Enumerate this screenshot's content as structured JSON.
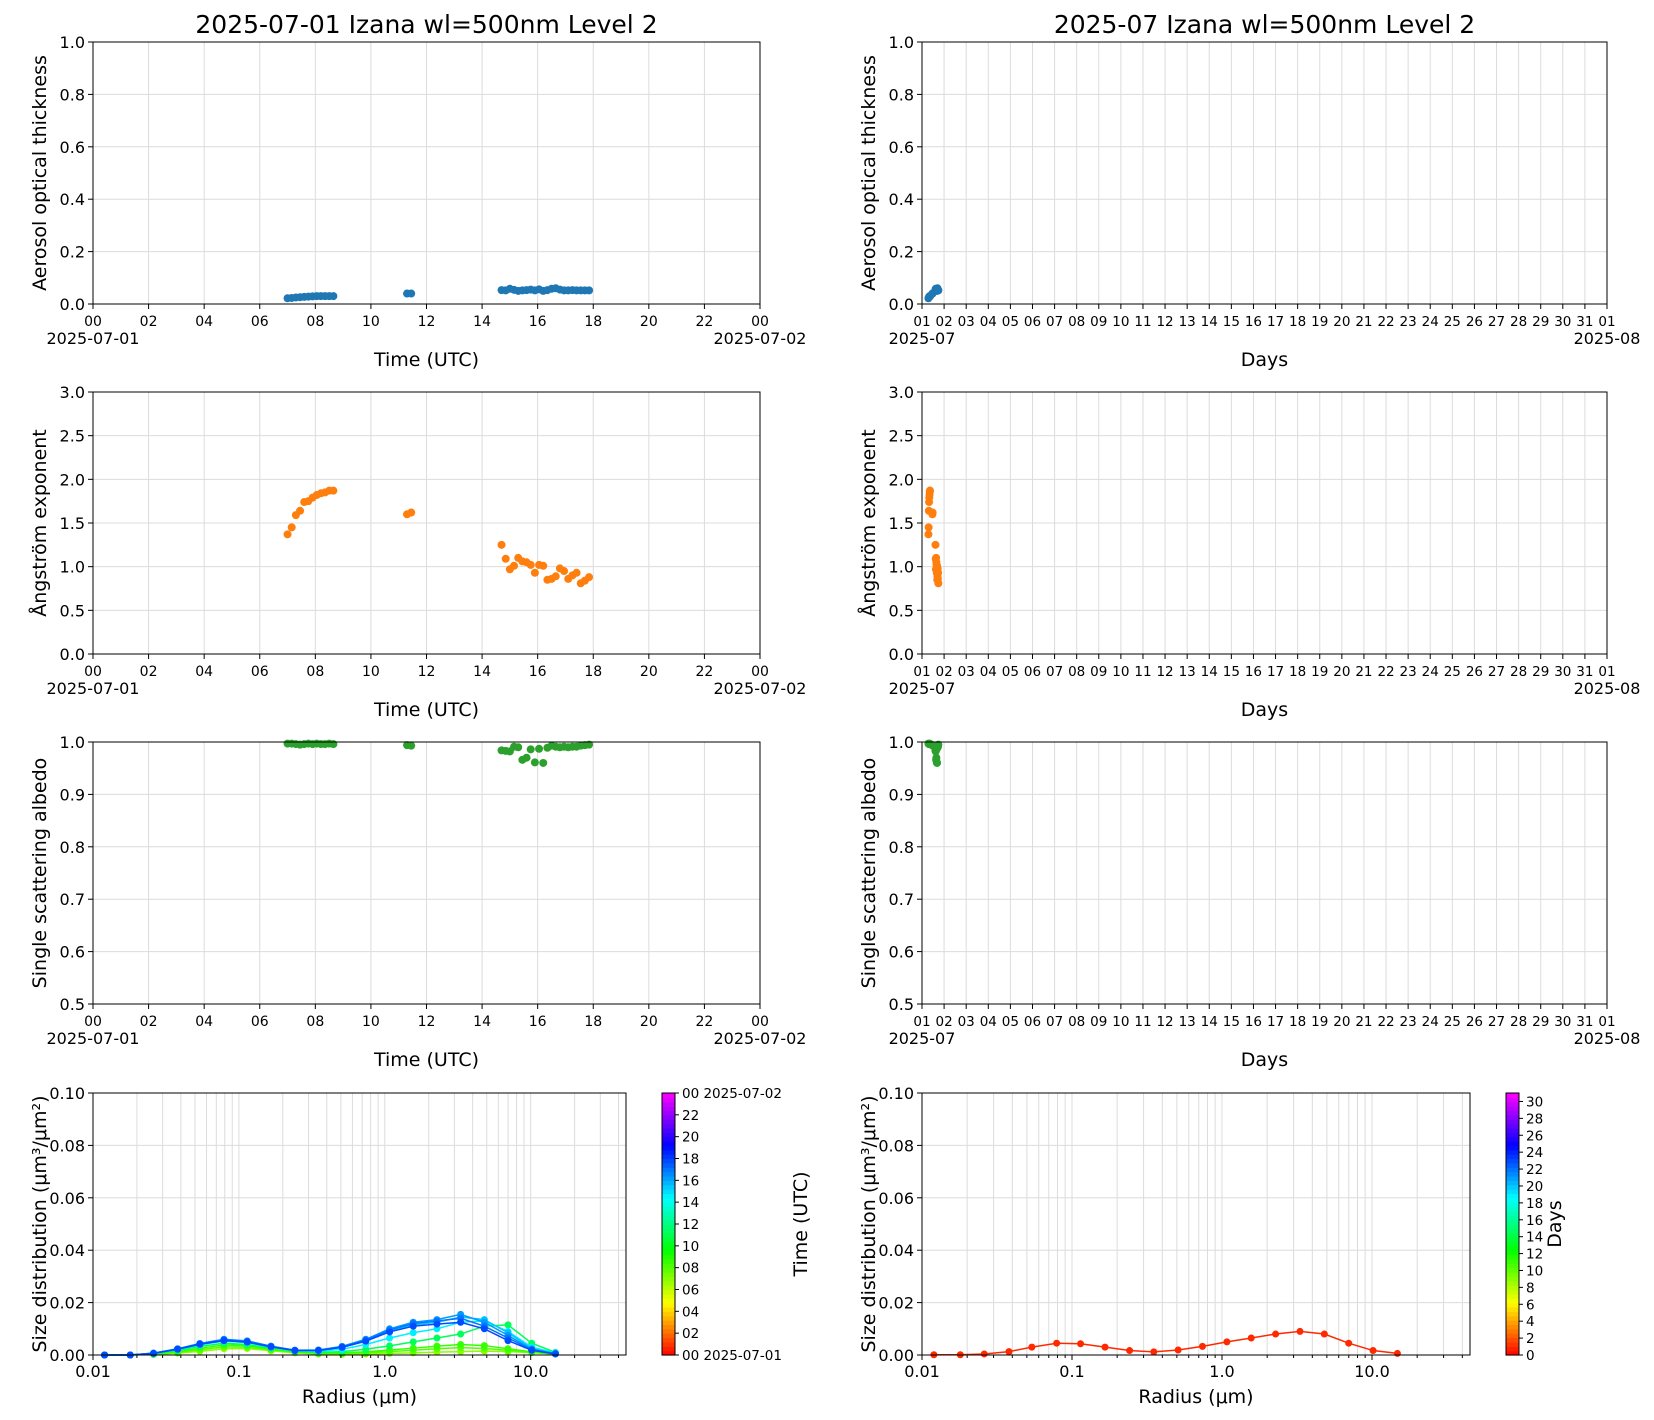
{
  "colors": {
    "aod": "#1f77b4",
    "angstrom": "#ff7f0e",
    "ssa": "#2ca02c",
    "grid": "#dcdcdc"
  },
  "chart_data": [
    {
      "id": "aod_day",
      "type": "scatter",
      "panel": "day",
      "title": "2025-07-01  Izana  wl=500nm  Level 2",
      "xlabel": "Time (UTC)",
      "ylabel": "Aerosol optical thickness",
      "xlim": [
        0,
        24
      ],
      "ylim": [
        0,
        1
      ],
      "xticks": [
        "00",
        "02",
        "04",
        "06",
        "08",
        "10",
        "12",
        "14",
        "16",
        "18",
        "20",
        "22",
        "00"
      ],
      "yticks": [
        "0.0",
        "0.2",
        "0.4",
        "0.6",
        "0.8",
        "1.0"
      ],
      "x_left_date": "2025-07-01",
      "x_right_date": "2025-07-02",
      "grid": true,
      "color": "#1f77b4",
      "x": [
        7.0,
        7.15,
        7.3,
        7.45,
        7.6,
        7.75,
        7.9,
        8.05,
        8.2,
        8.35,
        8.5,
        8.65,
        11.3,
        11.45,
        14.7,
        14.85,
        15.0,
        15.15,
        15.3,
        15.45,
        15.6,
        15.75,
        15.9,
        16.05,
        16.2,
        16.35,
        16.5,
        16.65,
        16.8,
        16.95,
        17.1,
        17.25,
        17.4,
        17.55,
        17.7,
        17.85
      ],
      "y": [
        0.022,
        0.023,
        0.025,
        0.026,
        0.027,
        0.028,
        0.029,
        0.03,
        0.03,
        0.03,
        0.03,
        0.03,
        0.04,
        0.04,
        0.053,
        0.052,
        0.058,
        0.054,
        0.05,
        0.052,
        0.053,
        0.055,
        0.052,
        0.056,
        0.05,
        0.053,
        0.058,
        0.06,
        0.055,
        0.052,
        0.052,
        0.053,
        0.052,
        0.052,
        0.052,
        0.052
      ]
    },
    {
      "id": "aod_month",
      "type": "scatter",
      "panel": "month",
      "title": "2025-07  Izana  wl=500nm  Level 2",
      "xlabel": "Days",
      "ylabel": "Aerosol optical thickness",
      "xlim": [
        1,
        32
      ],
      "ylim": [
        0,
        1
      ],
      "xticks": [
        "01",
        "02",
        "03",
        "04",
        "05",
        "06",
        "07",
        "08",
        "09",
        "10",
        "11",
        "12",
        "13",
        "14",
        "15",
        "16",
        "17",
        "18",
        "19",
        "20",
        "21",
        "22",
        "23",
        "24",
        "25",
        "26",
        "27",
        "28",
        "29",
        "30",
        "31",
        "01"
      ],
      "yticks": [
        "0.0",
        "0.2",
        "0.4",
        "0.6",
        "0.8",
        "1.0"
      ],
      "x_left_date": "2025-07",
      "x_right_date": "2025-08",
      "grid": true,
      "color": "#1f77b4",
      "x": [
        1.29,
        1.31,
        1.32,
        1.34,
        1.35,
        1.36,
        1.37,
        1.47,
        1.48,
        1.61,
        1.62,
        1.63,
        1.64,
        1.65,
        1.66,
        1.67,
        1.68,
        1.69,
        1.7,
        1.71,
        1.72,
        1.73,
        1.74
      ],
      "y": [
        0.022,
        0.025,
        0.027,
        0.029,
        0.03,
        0.03,
        0.03,
        0.04,
        0.04,
        0.053,
        0.058,
        0.054,
        0.05,
        0.053,
        0.055,
        0.056,
        0.05,
        0.058,
        0.06,
        0.055,
        0.052,
        0.053,
        0.052
      ]
    },
    {
      "id": "ae_day",
      "type": "scatter",
      "panel": "day",
      "xlabel": "Time (UTC)",
      "ylabel": "Ångström exponent",
      "xlim": [
        0,
        24
      ],
      "ylim": [
        0,
        3
      ],
      "xticks": [
        "00",
        "02",
        "04",
        "06",
        "08",
        "10",
        "12",
        "14",
        "16",
        "18",
        "20",
        "22",
        "00"
      ],
      "yticks": [
        "0.0",
        "0.5",
        "1.0",
        "1.5",
        "2.0",
        "2.5",
        "3.0"
      ],
      "x_left_date": "2025-07-01",
      "x_right_date": "2025-07-02",
      "grid": true,
      "color": "#ff7f0e",
      "x": [
        7.0,
        7.15,
        7.3,
        7.45,
        7.6,
        7.75,
        7.9,
        8.05,
        8.2,
        8.35,
        8.5,
        8.65,
        11.3,
        11.45,
        14.7,
        14.85,
        15.0,
        15.15,
        15.3,
        15.45,
        15.6,
        15.75,
        15.9,
        16.05,
        16.2,
        16.35,
        16.5,
        16.65,
        16.8,
        16.95,
        17.1,
        17.25,
        17.4,
        17.55,
        17.7,
        17.85
      ],
      "y": [
        1.37,
        1.45,
        1.59,
        1.64,
        1.74,
        1.75,
        1.79,
        1.82,
        1.84,
        1.85,
        1.87,
        1.87,
        1.6,
        1.62,
        1.25,
        1.09,
        0.97,
        1.01,
        1.1,
        1.06,
        1.05,
        1.02,
        0.93,
        1.02,
        1.01,
        0.85,
        0.86,
        0.89,
        0.98,
        0.95,
        0.86,
        0.9,
        0.93,
        0.81,
        0.84,
        0.88
      ]
    },
    {
      "id": "ae_month",
      "type": "scatter",
      "panel": "month",
      "xlabel": "Days",
      "ylabel": "Ångström exponent",
      "xlim": [
        1,
        32
      ],
      "ylim": [
        0,
        3
      ],
      "xticks": [
        "01",
        "02",
        "03",
        "04",
        "05",
        "06",
        "07",
        "08",
        "09",
        "10",
        "11",
        "12",
        "13",
        "14",
        "15",
        "16",
        "17",
        "18",
        "19",
        "20",
        "21",
        "22",
        "23",
        "24",
        "25",
        "26",
        "27",
        "28",
        "29",
        "30",
        "31",
        "01"
      ],
      "yticks": [
        "0.0",
        "0.5",
        "1.0",
        "1.5",
        "2.0",
        "2.5",
        "3.0"
      ],
      "x_left_date": "2025-07",
      "x_right_date": "2025-08",
      "grid": true,
      "color": "#ff7f0e",
      "x": [
        1.29,
        1.3,
        1.31,
        1.32,
        1.33,
        1.34,
        1.35,
        1.36,
        1.36,
        1.47,
        1.48,
        1.61,
        1.62,
        1.63,
        1.64,
        1.65,
        1.66,
        1.67,
        1.68,
        1.69,
        1.7,
        1.71,
        1.72,
        1.73,
        1.74
      ],
      "y": [
        1.37,
        1.45,
        1.64,
        1.74,
        1.79,
        1.82,
        1.85,
        1.87,
        1.87,
        1.6,
        1.62,
        1.25,
        1.09,
        0.97,
        1.1,
        1.05,
        1.02,
        0.93,
        1.01,
        0.85,
        0.89,
        0.98,
        0.86,
        0.93,
        0.81
      ]
    },
    {
      "id": "ssa_day",
      "type": "scatter",
      "panel": "day",
      "xlabel": "Time (UTC)",
      "ylabel": "Single scattering albedo",
      "xlim": [
        0,
        24
      ],
      "ylim": [
        0.5,
        1.0
      ],
      "xticks": [
        "00",
        "02",
        "04",
        "06",
        "08",
        "10",
        "12",
        "14",
        "16",
        "18",
        "20",
        "22",
        "00"
      ],
      "yticks": [
        "0.5",
        "0.6",
        "0.7",
        "0.8",
        "0.9",
        "1.0"
      ],
      "x_left_date": "2025-07-01",
      "x_right_date": "2025-07-02",
      "grid": true,
      "color": "#2ca02c",
      "x": [
        7.0,
        7.15,
        7.3,
        7.45,
        7.6,
        7.75,
        7.9,
        8.05,
        8.2,
        8.35,
        8.5,
        8.65,
        11.3,
        11.45,
        14.7,
        14.85,
        15.0,
        15.15,
        15.3,
        15.45,
        15.6,
        15.75,
        15.9,
        16.05,
        16.2,
        16.35,
        16.5,
        16.65,
        16.8,
        16.95,
        17.1,
        17.25,
        17.4,
        17.55,
        17.7,
        17.85
      ],
      "y": [
        0.997,
        0.997,
        0.996,
        0.995,
        0.996,
        0.997,
        0.996,
        0.997,
        0.996,
        0.996,
        0.997,
        0.996,
        0.994,
        0.993,
        0.984,
        0.983,
        0.982,
        0.991,
        0.99,
        0.966,
        0.97,
        0.986,
        0.961,
        0.987,
        0.96,
        0.989,
        0.993,
        0.991,
        0.99,
        0.991,
        0.99,
        0.991,
        0.991,
        0.993,
        0.994,
        0.995
      ]
    },
    {
      "id": "ssa_month",
      "type": "scatter",
      "panel": "month",
      "xlabel": "Days",
      "ylabel": "Single scattering albedo",
      "xlim": [
        1,
        32
      ],
      "ylim": [
        0.5,
        1.0
      ],
      "xticks": [
        "01",
        "02",
        "03",
        "04",
        "05",
        "06",
        "07",
        "08",
        "09",
        "10",
        "11",
        "12",
        "13",
        "14",
        "15",
        "16",
        "17",
        "18",
        "19",
        "20",
        "21",
        "22",
        "23",
        "24",
        "25",
        "26",
        "27",
        "28",
        "29",
        "30",
        "31",
        "01"
      ],
      "yticks": [
        "0.5",
        "0.6",
        "0.7",
        "0.8",
        "0.9",
        "1.0"
      ],
      "x_left_date": "2025-07",
      "x_right_date": "2025-08",
      "grid": true,
      "color": "#2ca02c",
      "x": [
        1.29,
        1.31,
        1.33,
        1.35,
        1.36,
        1.47,
        1.48,
        1.61,
        1.62,
        1.63,
        1.64,
        1.65,
        1.66,
        1.67,
        1.68,
        1.69,
        1.7,
        1.71,
        1.72,
        1.73,
        1.74
      ],
      "y": [
        0.997,
        0.996,
        0.996,
        0.997,
        0.996,
        0.994,
        0.993,
        0.984,
        0.982,
        0.991,
        0.966,
        0.97,
        0.986,
        0.961,
        0.96,
        0.989,
        0.993,
        0.99,
        0.991,
        0.993,
        0.995
      ]
    },
    {
      "id": "psd_day",
      "type": "line",
      "panel": "day",
      "xlabel": "Radius (μm)",
      "ylabel": "Size distribution (μm³/μm²)",
      "xscale": "log",
      "xlim": [
        0.01,
        45
      ],
      "ylim": [
        0,
        0.1
      ],
      "xticks": [
        "0.01",
        "0.1",
        "1.0",
        "10.0"
      ],
      "yticks": [
        "0.00",
        "0.02",
        "0.04",
        "0.06",
        "0.08",
        "0.10"
      ],
      "grid": true,
      "radius": [
        0.012,
        0.018,
        0.026,
        0.038,
        0.054,
        0.079,
        0.114,
        0.166,
        0.242,
        0.351,
        0.51,
        0.741,
        1.078,
        1.566,
        2.277,
        3.31,
        4.81,
        6.99,
        10.16,
        14.77
      ],
      "series": [
        {
          "time": 7.0,
          "values": [
            0,
            0,
            0.0002,
            0.0007,
            0.0014,
            0.0024,
            0.0025,
            0.0016,
            0.0008,
            0.0004,
            0.0003,
            0.0004,
            0.0006,
            0.0008,
            0.0011,
            0.0013,
            0.0015,
            0.0013,
            0.0009,
            0.0004
          ]
        },
        {
          "time": 8.0,
          "values": [
            0,
            0,
            0.0003,
            0.001,
            0.002,
            0.0031,
            0.003,
            0.002,
            0.0011,
            0.0006,
            0.0006,
            0.0008,
            0.0013,
            0.0018,
            0.0024,
            0.0028,
            0.0025,
            0.0018,
            0.001,
            0.0004
          ]
        },
        {
          "time": 8.6,
          "values": [
            0,
            0,
            0.0004,
            0.0013,
            0.0026,
            0.0038,
            0.0036,
            0.0023,
            0.0012,
            0.0008,
            0.0008,
            0.0012,
            0.0019,
            0.0026,
            0.0034,
            0.004,
            0.0036,
            0.0024,
            0.0012,
            0.0004
          ]
        },
        {
          "time": 11.3,
          "values": [
            0,
            0,
            0.0005,
            0.0017,
            0.0033,
            0.0045,
            0.004,
            0.0026,
            0.0014,
            0.001,
            0.0013,
            0.0022,
            0.0035,
            0.005,
            0.0065,
            0.008,
            0.011,
            0.0115,
            0.0045,
            0.001
          ]
        },
        {
          "time": 14.7,
          "values": [
            0,
            0,
            0.0006,
            0.0021,
            0.0039,
            0.0053,
            0.0047,
            0.003,
            0.0016,
            0.0014,
            0.0022,
            0.004,
            0.0065,
            0.0085,
            0.01,
            0.0125,
            0.013,
            0.009,
            0.003,
            0.0008
          ]
        },
        {
          "time": 15.5,
          "values": [
            0,
            0,
            0.0006,
            0.0022,
            0.0041,
            0.0056,
            0.005,
            0.0032,
            0.0017,
            0.0018,
            0.003,
            0.0055,
            0.009,
            0.0115,
            0.0125,
            0.0145,
            0.0135,
            0.0085,
            0.0025,
            0.0006
          ]
        },
        {
          "time": 16.3,
          "values": [
            0,
            0,
            0.0007,
            0.0024,
            0.0044,
            0.006,
            0.0054,
            0.0034,
            0.0018,
            0.0019,
            0.0033,
            0.006,
            0.01,
            0.0125,
            0.0135,
            0.0155,
            0.0125,
            0.0075,
            0.0022,
            0.0005
          ]
        },
        {
          "time": 17.0,
          "values": [
            0,
            0,
            0.0007,
            0.0023,
            0.0043,
            0.0058,
            0.0052,
            0.0033,
            0.0018,
            0.0018,
            0.0031,
            0.0057,
            0.0095,
            0.012,
            0.013,
            0.014,
            0.011,
            0.0065,
            0.002,
            0.0005
          ]
        },
        {
          "time": 17.8,
          "values": [
            0,
            0,
            0.0006,
            0.0022,
            0.0041,
            0.0055,
            0.0049,
            0.0031,
            0.0017,
            0.0017,
            0.0029,
            0.0053,
            0.0088,
            0.011,
            0.0118,
            0.0125,
            0.01,
            0.0055,
            0.0018,
            0.0004
          ]
        }
      ],
      "colorbar": {
        "label": "Time (UTC)",
        "min": 0,
        "max": 24,
        "ticks": [
          "00 2025-07-01",
          "02",
          "04",
          "06",
          "08",
          "10",
          "12",
          "14",
          "16",
          "18",
          "20",
          "22",
          "00 2025-07-02"
        ]
      }
    },
    {
      "id": "psd_month",
      "type": "line",
      "panel": "month",
      "xlabel": "Radius (μm)",
      "ylabel": "Size distribution (μm³/μm²)",
      "xscale": "log",
      "xlim": [
        0.01,
        45
      ],
      "ylim": [
        0,
        0.1
      ],
      "xticks": [
        "0.01",
        "0.1",
        "1.0",
        "10.0"
      ],
      "yticks": [
        "0.00",
        "0.02",
        "0.04",
        "0.06",
        "0.08",
        "0.10"
      ],
      "grid": true,
      "radius": [
        0.012,
        0.018,
        0.026,
        0.038,
        0.054,
        0.079,
        0.114,
        0.166,
        0.242,
        0.351,
        0.51,
        0.741,
        1.078,
        1.566,
        2.277,
        3.31,
        4.81,
        6.99,
        10.16,
        14.77
      ],
      "series": [
        {
          "day": 1,
          "values": [
            0.0001,
            0.0001,
            0.0004,
            0.0013,
            0.003,
            0.0045,
            0.0043,
            0.003,
            0.0017,
            0.0012,
            0.0019,
            0.0033,
            0.005,
            0.0065,
            0.008,
            0.009,
            0.008,
            0.0045,
            0.0017,
            0.0006
          ]
        }
      ],
      "colorbar": {
        "label": "Days",
        "min": 0,
        "max": 31,
        "ticks": [
          "0",
          "2",
          "4",
          "6",
          "8",
          "10",
          "12",
          "14",
          "16",
          "18",
          "20",
          "22",
          "24",
          "26",
          "28",
          "30"
        ]
      }
    }
  ]
}
